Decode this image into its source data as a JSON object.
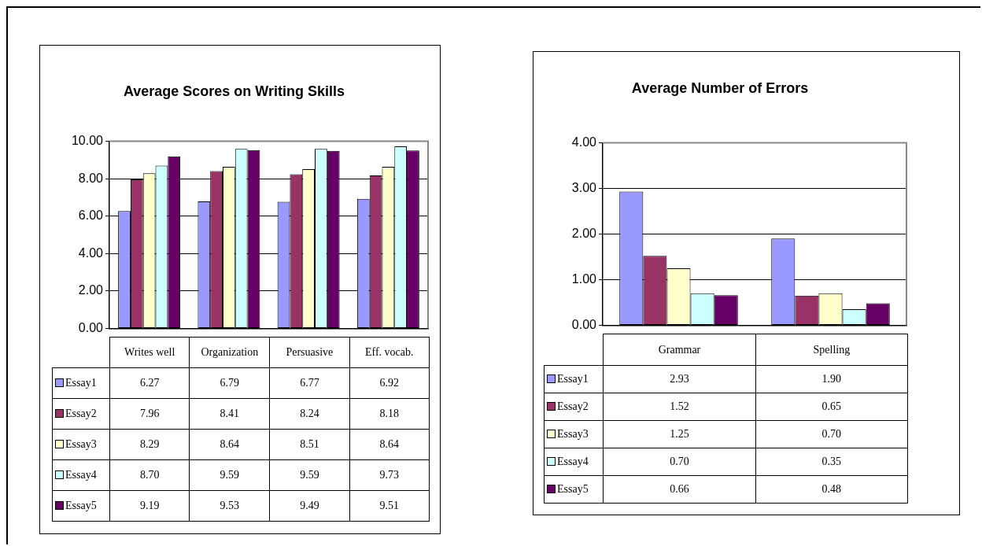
{
  "chart_data": [
    {
      "type": "bar",
      "title": "Average Scores on Writing Skills",
      "categories": [
        "Writes well",
        "Organization",
        "Persuasive",
        "Eff. vocab."
      ],
      "series": [
        {
          "name": "Essay1",
          "color": "#9999ff",
          "values": [
            6.27,
            6.79,
            6.77,
            6.92
          ],
          "value_labels": [
            "6.27",
            "6.79",
            "6.77",
            "6.92"
          ]
        },
        {
          "name": "Essay2",
          "color": "#993366",
          "values": [
            7.96,
            8.41,
            8.24,
            8.18
          ],
          "value_labels": [
            "7.96",
            "8.41",
            "8.24",
            "8.18"
          ]
        },
        {
          "name": "Essay3",
          "color": "#ffffcc",
          "values": [
            8.29,
            8.64,
            8.51,
            8.64
          ],
          "value_labels": [
            "8.29",
            "8.64",
            "8.51",
            "8.64"
          ]
        },
        {
          "name": "Essay4",
          "color": "#ccffff",
          "values": [
            8.7,
            9.59,
            9.59,
            9.73
          ],
          "value_labels": [
            "8.70",
            "9.59",
            "9.59",
            "9.73"
          ]
        },
        {
          "name": "Essay5",
          "color": "#660066",
          "values": [
            9.19,
            9.53,
            9.49,
            9.51
          ],
          "value_labels": [
            "9.19",
            "9.53",
            "9.49",
            "9.51"
          ]
        }
      ],
      "ylim": [
        0,
        10
      ],
      "yticks": [
        {
          "value": 0,
          "label": "0.00"
        },
        {
          "value": 2,
          "label": "2.00"
        },
        {
          "value": 4,
          "label": "4.00"
        },
        {
          "value": 6,
          "label": "6.00"
        },
        {
          "value": 8,
          "label": "8.00"
        },
        {
          "value": 10,
          "label": "10.00"
        }
      ],
      "grid": "y",
      "legend": "bottom"
    },
    {
      "type": "bar",
      "title": "Average Number of Errors",
      "categories": [
        "Grammar",
        "Spelling"
      ],
      "series": [
        {
          "name": "Essay1",
          "color": "#9999ff",
          "values": [
            2.93,
            1.9
          ],
          "value_labels": [
            "2.93",
            "1.90"
          ]
        },
        {
          "name": "Essay2",
          "color": "#993366",
          "values": [
            1.52,
            0.65
          ],
          "value_labels": [
            "1.52",
            "0.65"
          ]
        },
        {
          "name": "Essay3",
          "color": "#ffffcc",
          "values": [
            1.25,
            0.7
          ],
          "value_labels": [
            "1.25",
            "0.70"
          ]
        },
        {
          "name": "Essay4",
          "color": "#ccffff",
          "values": [
            0.7,
            0.35
          ],
          "value_labels": [
            "0.70",
            "0.35"
          ]
        },
        {
          "name": "Essay5",
          "color": "#660066",
          "values": [
            0.66,
            0.48
          ],
          "value_labels": [
            "0.66",
            "0.48"
          ]
        }
      ],
      "ylim": [
        0,
        4
      ],
      "yticks": [
        {
          "value": 0,
          "label": "0.00"
        },
        {
          "value": 1,
          "label": "1.00"
        },
        {
          "value": 2,
          "label": "2.00"
        },
        {
          "value": 3,
          "label": "3.00"
        },
        {
          "value": 4,
          "label": "4.00"
        }
      ],
      "grid": "y",
      "legend": "bottom"
    }
  ]
}
